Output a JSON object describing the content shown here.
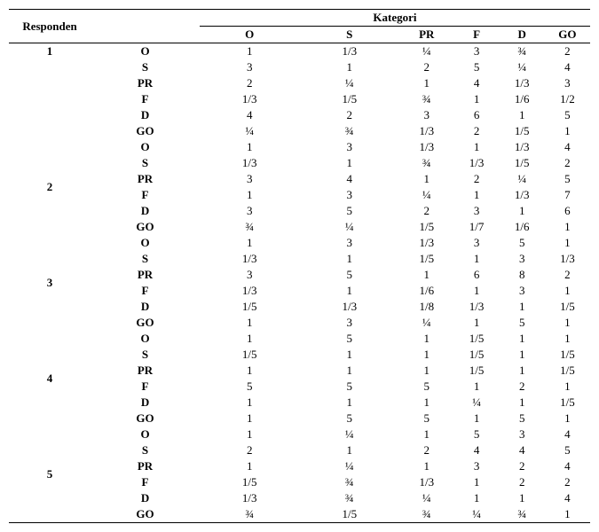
{
  "header": {
    "responden": "Responden",
    "kategori": "Kategori",
    "cols": [
      "O",
      "S",
      "PR",
      "F",
      "D",
      "GO"
    ]
  },
  "rowLabels": [
    "O",
    "S",
    "PR",
    "F",
    "D",
    "GO"
  ],
  "groups": [
    {
      "id": "1",
      "rows": [
        [
          "1",
          "1/3",
          "¼",
          "3",
          "¾",
          "2"
        ],
        [
          "3",
          "1",
          "2",
          "5",
          "¼",
          "4"
        ],
        [
          "2",
          "¼",
          "1",
          "4",
          "1/3",
          "3"
        ],
        [
          "1/3",
          "1/5",
          "¾",
          "1",
          "1/6",
          "1/2"
        ],
        [
          "4",
          "2",
          "3",
          "6",
          "1",
          "5"
        ],
        [
          "¼",
          "¾",
          "1/3",
          "2",
          "1/5",
          "1"
        ]
      ]
    },
    {
      "id": "2",
      "rows": [
        [
          "1",
          "3",
          "1/3",
          "1",
          "1/3",
          "4"
        ],
        [
          "1/3",
          "1",
          "¾",
          "1/3",
          "1/5",
          "2"
        ],
        [
          "3",
          "4",
          "1",
          "2",
          "¼",
          "5"
        ],
        [
          "1",
          "3",
          "¼",
          "1",
          "1/3",
          "7"
        ],
        [
          "3",
          "5",
          "2",
          "3",
          "1",
          "6"
        ],
        [
          "¾",
          "¼",
          "1/5",
          "1/7",
          "1/6",
          "1"
        ]
      ]
    },
    {
      "id": "3",
      "rows": [
        [
          "1",
          "3",
          "1/3",
          "3",
          "5",
          "1"
        ],
        [
          "1/3",
          "1",
          "1/5",
          "1",
          "3",
          "1/3"
        ],
        [
          "3",
          "5",
          "1",
          "6",
          "8",
          "2"
        ],
        [
          "1/3",
          "1",
          "1/6",
          "1",
          "3",
          "1"
        ],
        [
          "1/5",
          "1/3",
          "1/8",
          "1/3",
          "1",
          "1/5"
        ],
        [
          "1",
          "3",
          "¼",
          "1",
          "5",
          "1"
        ]
      ]
    },
    {
      "id": "4",
      "rows": [
        [
          "1",
          "5",
          "1",
          "1/5",
          "1",
          "1"
        ],
        [
          "1/5",
          "1",
          "1",
          "1/5",
          "1",
          "1/5"
        ],
        [
          "1",
          "1",
          "1",
          "1/5",
          "1",
          "1/5"
        ],
        [
          "5",
          "5",
          "5",
          "1",
          "2",
          "1"
        ],
        [
          "1",
          "1",
          "1",
          "¼",
          "1",
          "1/5"
        ],
        [
          "1",
          "5",
          "5",
          "1",
          "5",
          "1"
        ]
      ]
    },
    {
      "id": "5",
      "rows": [
        [
          "1",
          "¼",
          "1",
          "5",
          "3",
          "4"
        ],
        [
          "2",
          "1",
          "2",
          "4",
          "4",
          "5"
        ],
        [
          "1",
          "¼",
          "1",
          "3",
          "2",
          "4"
        ],
        [
          "1/5",
          "¾",
          "1/3",
          "1",
          "2",
          "2"
        ],
        [
          "1/3",
          "¾",
          "¼",
          "1",
          "1",
          "4"
        ],
        [
          "¾",
          "1/5",
          "¾",
          "¼",
          "¾",
          "1"
        ]
      ]
    }
  ],
  "style": {
    "font_family": "Times New Roman",
    "font_size_pt": 10,
    "text_color": "#000000",
    "background": "#ffffff",
    "border_color": "#000000"
  }
}
